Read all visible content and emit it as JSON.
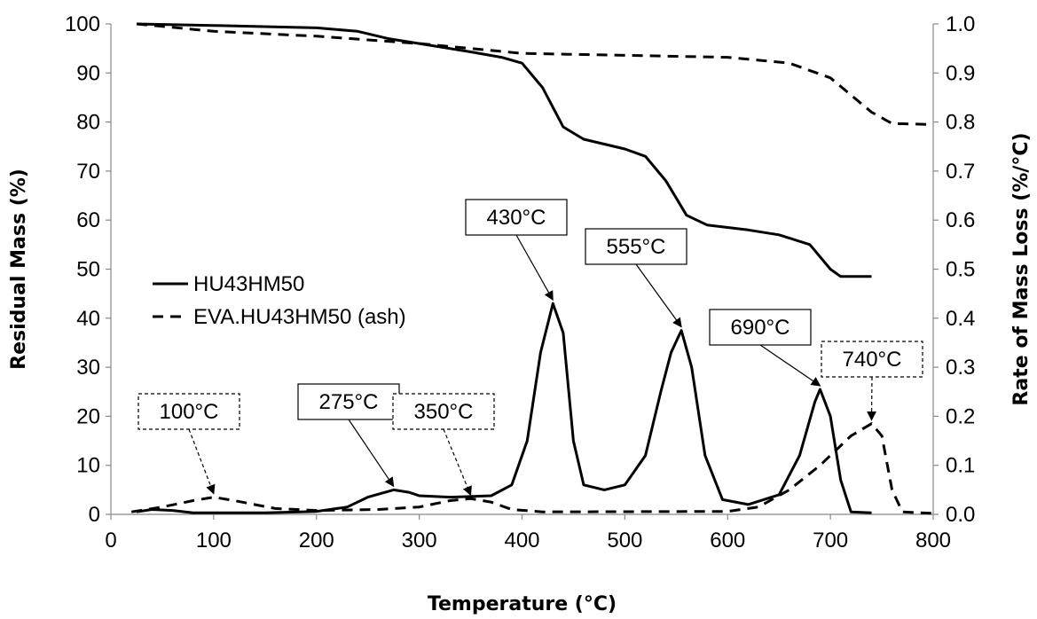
{
  "chart_data": {
    "type": "line",
    "xlabel": "Temperature (°C)",
    "ylabel": "Residual Mass (%)",
    "y2label": "Rate of Mass Loss (%/°C)",
    "xlim": [
      0,
      800
    ],
    "ylim": [
      0,
      100
    ],
    "y2lim": [
      0,
      1.0
    ],
    "xticks": [
      0,
      100,
      200,
      300,
      400,
      500,
      600,
      700,
      800
    ],
    "yticks": [
      0,
      10,
      20,
      30,
      40,
      50,
      60,
      70,
      80,
      90,
      100
    ],
    "y2ticks": [
      "0.0",
      "0.1",
      "0.2",
      "0.3",
      "0.4",
      "0.5",
      "0.6",
      "0.7",
      "0.8",
      "0.9",
      "1.0"
    ],
    "grid": false,
    "legend_position": "center-left",
    "series": [
      {
        "name": "HU43HM50",
        "style": "solid",
        "color": "#000000",
        "tga": [
          [
            25,
            100
          ],
          [
            100,
            99.7
          ],
          [
            200,
            99.2
          ],
          [
            240,
            98.5
          ],
          [
            270,
            97
          ],
          [
            300,
            96
          ],
          [
            350,
            94.3
          ],
          [
            380,
            93.2
          ],
          [
            400,
            92
          ],
          [
            420,
            87
          ],
          [
            440,
            79
          ],
          [
            460,
            76.5
          ],
          [
            500,
            74.5
          ],
          [
            520,
            73
          ],
          [
            540,
            68
          ],
          [
            560,
            61
          ],
          [
            580,
            59
          ],
          [
            620,
            58
          ],
          [
            650,
            57
          ],
          [
            680,
            55
          ],
          [
            700,
            50
          ],
          [
            710,
            48.5
          ],
          [
            740,
            48.5
          ]
        ],
        "dtg": [
          [
            25,
            0.005
          ],
          [
            40,
            0.01
          ],
          [
            60,
            0.008
          ],
          [
            80,
            0.003
          ],
          [
            150,
            0.003
          ],
          [
            200,
            0.006
          ],
          [
            230,
            0.015
          ],
          [
            250,
            0.035
          ],
          [
            275,
            0.05
          ],
          [
            290,
            0.045
          ],
          [
            300,
            0.038
          ],
          [
            330,
            0.035
          ],
          [
            370,
            0.038
          ],
          [
            390,
            0.06
          ],
          [
            405,
            0.15
          ],
          [
            418,
            0.33
          ],
          [
            430,
            0.43
          ],
          [
            440,
            0.37
          ],
          [
            450,
            0.15
          ],
          [
            460,
            0.06
          ],
          [
            480,
            0.05
          ],
          [
            500,
            0.06
          ],
          [
            520,
            0.12
          ],
          [
            535,
            0.25
          ],
          [
            545,
            0.33
          ],
          [
            555,
            0.375
          ],
          [
            565,
            0.3
          ],
          [
            578,
            0.12
          ],
          [
            595,
            0.03
          ],
          [
            620,
            0.02
          ],
          [
            650,
            0.04
          ],
          [
            670,
            0.12
          ],
          [
            685,
            0.23
          ],
          [
            690,
            0.255
          ],
          [
            700,
            0.2
          ],
          [
            710,
            0.07
          ],
          [
            720,
            0.005
          ],
          [
            740,
            0.003
          ]
        ]
      },
      {
        "name": "EVA.HU43HM50 (ash)",
        "style": "dashed",
        "color": "#000000",
        "tga": [
          [
            25,
            100
          ],
          [
            100,
            98.5
          ],
          [
            200,
            97.5
          ],
          [
            300,
            96
          ],
          [
            400,
            94
          ],
          [
            500,
            93.6
          ],
          [
            600,
            93.2
          ],
          [
            660,
            92
          ],
          [
            700,
            89
          ],
          [
            740,
            82
          ],
          [
            760,
            79.7
          ],
          [
            800,
            79.5
          ]
        ],
        "dtg": [
          [
            20,
            0.005
          ],
          [
            50,
            0.015
          ],
          [
            80,
            0.028
          ],
          [
            100,
            0.035
          ],
          [
            120,
            0.028
          ],
          [
            160,
            0.012
          ],
          [
            200,
            0.008
          ],
          [
            260,
            0.01
          ],
          [
            300,
            0.015
          ],
          [
            330,
            0.028
          ],
          [
            350,
            0.032
          ],
          [
            370,
            0.025
          ],
          [
            390,
            0.01
          ],
          [
            420,
            0.005
          ],
          [
            600,
            0.006
          ],
          [
            630,
            0.015
          ],
          [
            660,
            0.05
          ],
          [
            690,
            0.1
          ],
          [
            720,
            0.16
          ],
          [
            740,
            0.185
          ],
          [
            750,
            0.16
          ],
          [
            760,
            0.05
          ],
          [
            770,
            0.005
          ],
          [
            800,
            0.002
          ]
        ]
      }
    ],
    "annotations": [
      {
        "text": "100°C",
        "x": 100,
        "y2": 0.035,
        "style": "dashed"
      },
      {
        "text": "275°C",
        "x": 275,
        "y2": 0.05,
        "style": "solid"
      },
      {
        "text": "350°C",
        "x": 350,
        "y2": 0.032,
        "style": "dashed"
      },
      {
        "text": "430°C",
        "x": 430,
        "y2": 0.43,
        "style": "solid"
      },
      {
        "text": "555°C",
        "x": 555,
        "y2": 0.375,
        "style": "solid"
      },
      {
        "text": "690°C",
        "x": 690,
        "y2": 0.255,
        "style": "solid"
      },
      {
        "text": "740°C",
        "x": 740,
        "y2": 0.185,
        "style": "dashed"
      }
    ]
  }
}
